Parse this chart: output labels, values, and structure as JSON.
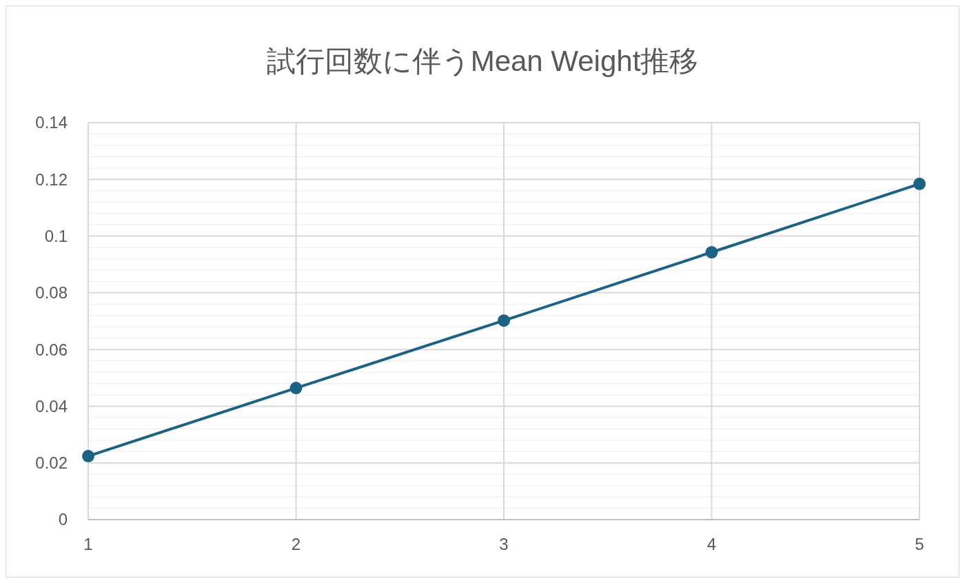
{
  "chart_data": {
    "type": "line",
    "title": "試行回数に伴うMean Weight推移",
    "x": [
      1,
      2,
      3,
      4,
      5
    ],
    "series": [
      {
        "color": "#1c6284",
        "values": [
          0.0224,
          0.0464,
          0.0702,
          0.0943,
          0.1184
        ]
      }
    ],
    "xlim": [
      1,
      5
    ],
    "xticks": [
      1,
      2,
      3,
      4,
      5
    ],
    "ylim": [
      0,
      0.14
    ],
    "yticks": [
      0,
      {
        "value": 0.004,
        "label": null
      },
      {
        "value": 0.008,
        "label": null
      },
      {
        "value": 0.012,
        "label": null
      },
      {
        "value": 0.016,
        "label": null
      },
      0.02,
      {
        "value": 0.024,
        "label": null
      },
      {
        "value": 0.028,
        "label": null
      },
      {
        "value": 0.032,
        "label": null
      },
      {
        "value": 0.036,
        "label": null
      },
      0.04,
      {
        "value": 0.044,
        "label": null
      },
      {
        "value": 0.048,
        "label": null
      },
      {
        "value": 0.052,
        "label": null
      },
      {
        "value": 0.056,
        "label": null
      },
      0.06,
      {
        "value": 0.064,
        "label": null
      },
      {
        "value": 0.068,
        "label": null
      },
      {
        "value": 0.072,
        "label": null
      },
      {
        "value": 0.076,
        "label": null
      },
      0.08,
      {
        "value": 0.084,
        "label": null
      },
      {
        "value": 0.088,
        "label": null
      },
      {
        "value": 0.092,
        "label": null
      },
      {
        "value": 0.096,
        "label": null
      },
      {
        "value": 0.1,
        "label": "0.1"
      },
      {
        "value": 0.104,
        "label": null
      },
      {
        "value": 0.108,
        "label": null
      },
      {
        "value": 0.112,
        "label": null
      },
      {
        "value": 0.116,
        "label": null
      },
      0.12,
      {
        "value": 0.124,
        "label": null
      },
      {
        "value": 0.128,
        "label": null
      },
      {
        "value": 0.132,
        "label": null
      },
      {
        "value": 0.136,
        "label": null
      },
      0.14
    ],
    "grid": true,
    "marker": "circle",
    "line_style": "solid"
  }
}
